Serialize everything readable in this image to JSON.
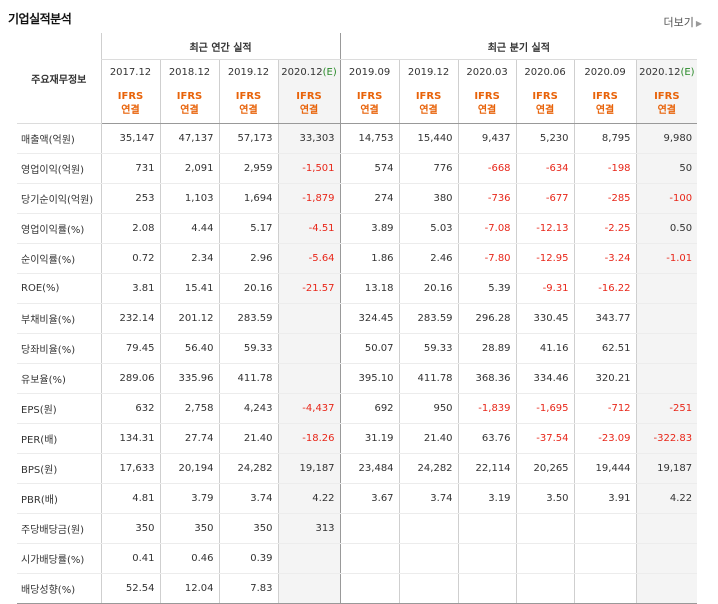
{
  "header": {
    "title": "기업실적분석",
    "more_label": "더보기"
  },
  "table": {
    "corner_label": "주요재무정보",
    "group_annual": "최근 연간 실적",
    "group_quarter": "최근 분기 실적",
    "periods": [
      "2017.12",
      "2018.12",
      "2019.12",
      "2020.12",
      "2019.09",
      "2019.12",
      "2020.03",
      "2020.06",
      "2020.09",
      "2020.12"
    ],
    "estimate_mark": "(E)",
    "accounting": [
      "IFRS",
      "연결"
    ],
    "rows": [
      {
        "label": "매출액(억원)",
        "values": [
          "35,147",
          "47,137",
          "57,173",
          "33,303",
          "14,753",
          "15,440",
          "9,437",
          "5,230",
          "8,795",
          "9,980"
        ]
      },
      {
        "label": "영업이익(억원)",
        "values": [
          "731",
          "2,091",
          "2,959",
          "-1,501",
          "574",
          "776",
          "-668",
          "-634",
          "-198",
          "50"
        ]
      },
      {
        "label": "당기순이익(억원)",
        "values": [
          "253",
          "1,103",
          "1,694",
          "-1,879",
          "274",
          "380",
          "-736",
          "-677",
          "-285",
          "-100"
        ]
      },
      {
        "label": "영업이익률(%)",
        "values": [
          "2.08",
          "4.44",
          "5.17",
          "-4.51",
          "3.89",
          "5.03",
          "-7.08",
          "-12.13",
          "-2.25",
          "0.50"
        ]
      },
      {
        "label": "순이익률(%)",
        "values": [
          "0.72",
          "2.34",
          "2.96",
          "-5.64",
          "1.86",
          "2.46",
          "-7.80",
          "-12.95",
          "-3.24",
          "-1.01"
        ]
      },
      {
        "label": "ROE(%)",
        "values": [
          "3.81",
          "15.41",
          "20.16",
          "-21.57",
          "13.18",
          "20.16",
          "5.39",
          "-9.31",
          "-16.22",
          ""
        ]
      },
      {
        "label": "부채비율(%)",
        "values": [
          "232.14",
          "201.12",
          "283.59",
          "",
          "324.45",
          "283.59",
          "296.28",
          "330.45",
          "343.77",
          ""
        ]
      },
      {
        "label": "당좌비율(%)",
        "values": [
          "79.45",
          "56.40",
          "59.33",
          "",
          "50.07",
          "59.33",
          "28.89",
          "41.16",
          "62.51",
          ""
        ]
      },
      {
        "label": "유보율(%)",
        "values": [
          "289.06",
          "335.96",
          "411.78",
          "",
          "395.10",
          "411.78",
          "368.36",
          "334.46",
          "320.21",
          ""
        ]
      },
      {
        "label": "EPS(원)",
        "values": [
          "632",
          "2,758",
          "4,243",
          "-4,437",
          "692",
          "950",
          "-1,839",
          "-1,695",
          "-712",
          "-251"
        ]
      },
      {
        "label": "PER(배)",
        "values": [
          "134.31",
          "27.74",
          "21.40",
          "-18.26",
          "31.19",
          "21.40",
          "63.76",
          "-37.54",
          "-23.09",
          "-322.83"
        ]
      },
      {
        "label": "BPS(원)",
        "values": [
          "17,633",
          "20,194",
          "24,282",
          "19,187",
          "23,484",
          "24,282",
          "22,114",
          "20,265",
          "19,444",
          "19,187"
        ]
      },
      {
        "label": "PBR(배)",
        "values": [
          "4.81",
          "3.79",
          "3.74",
          "4.22",
          "3.67",
          "3.74",
          "3.19",
          "3.50",
          "3.91",
          "4.22"
        ]
      },
      {
        "label": "주당배당금(원)",
        "values": [
          "350",
          "350",
          "350",
          "313",
          "",
          "",
          "",
          "",
          "",
          ""
        ]
      },
      {
        "label": "시가배당률(%)",
        "values": [
          "0.41",
          "0.46",
          "0.39",
          "",
          "",
          "",
          "",
          "",
          "",
          ""
        ]
      },
      {
        "label": "배당성향(%)",
        "values": [
          "52.54",
          "12.04",
          "7.83",
          "",
          "",
          "",
          "",
          "",
          "",
          ""
        ]
      }
    ]
  }
}
